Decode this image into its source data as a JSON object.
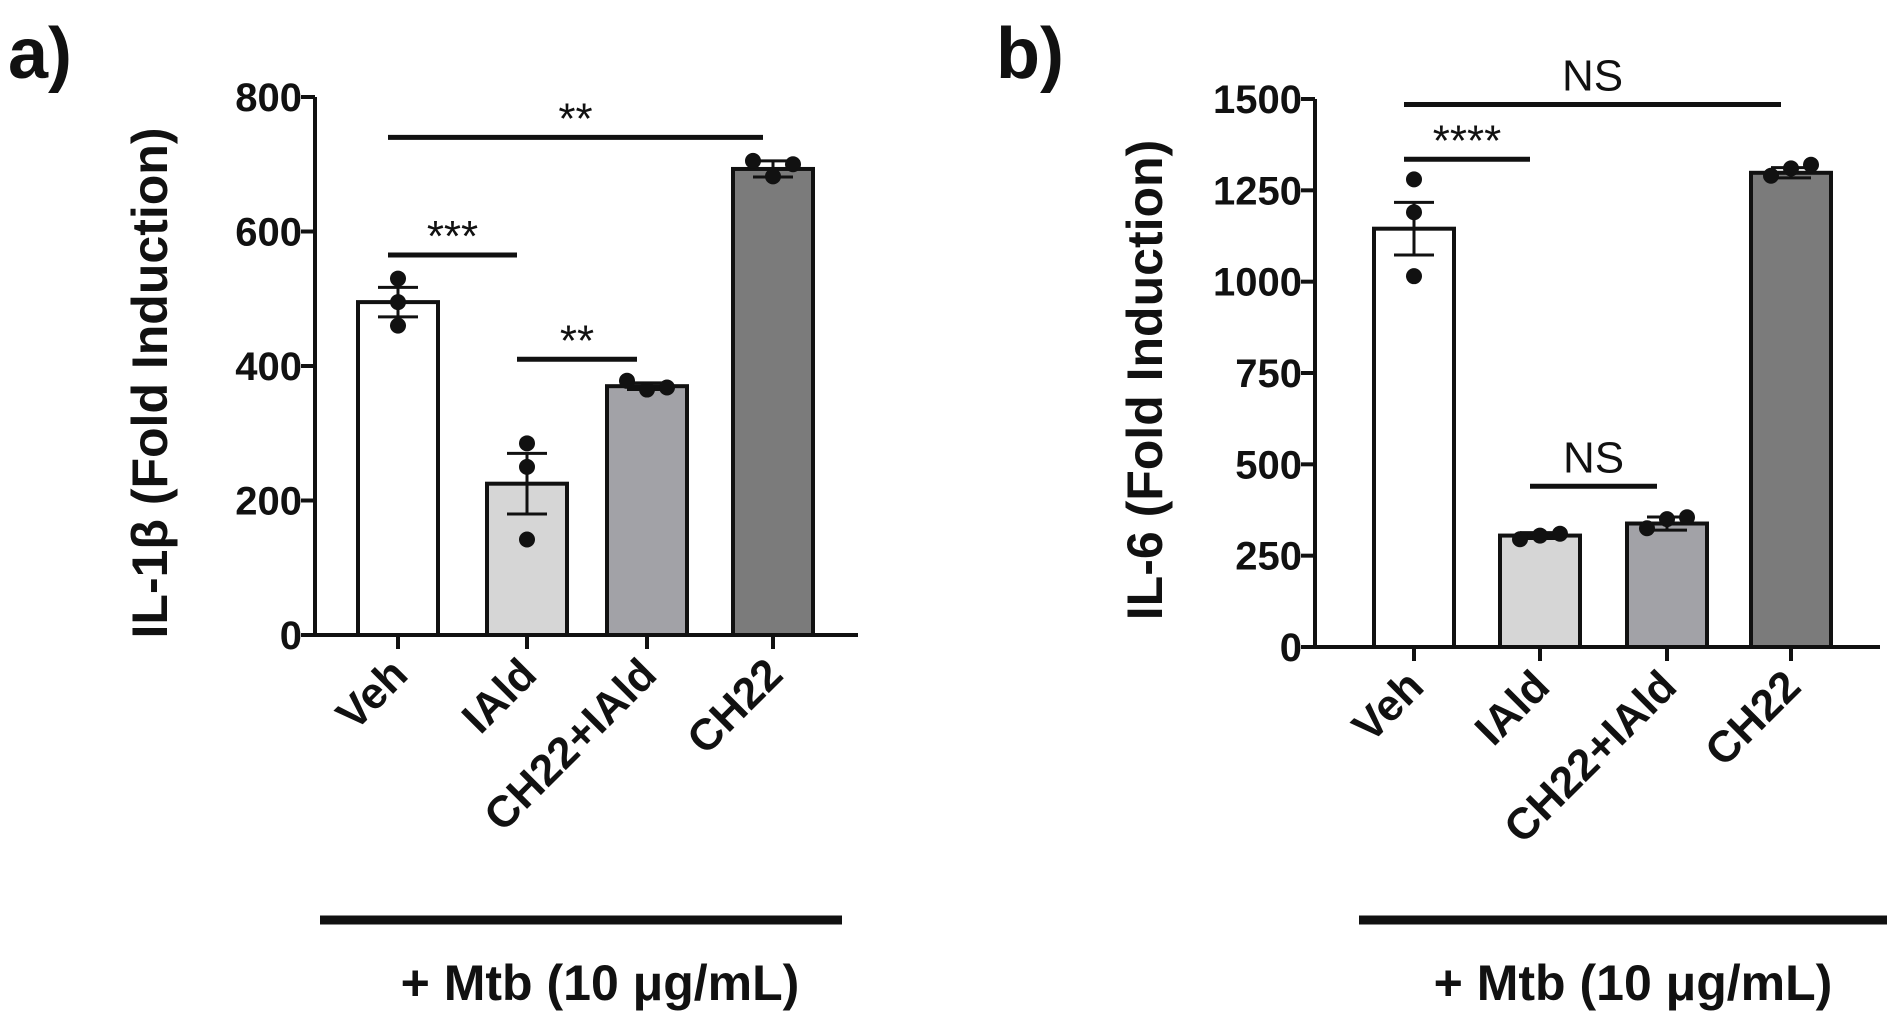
{
  "figure": {
    "colors": {
      "ink": "#111111",
      "veh": "#ffffff",
      "iald": "#d6d6d6",
      "ch22_iald": "#a2a2a7",
      "ch22": "#7b7b7b"
    }
  },
  "chart_data": [
    {
      "type": "bar",
      "panel_label": "a)",
      "title": "",
      "xlabel": "",
      "ylabel": "IL-1β (Fold Induction)",
      "ylim": [
        0,
        800
      ],
      "yticks": [
        0,
        200,
        400,
        600,
        800
      ],
      "ytick_labels": [
        "0",
        "200",
        "400",
        "600",
        "800"
      ],
      "categories": [
        "Veh",
        "IAld",
        "CH22+IAld",
        "CH22"
      ],
      "values": [
        495,
        225,
        370,
        693
      ],
      "errors": [
        22,
        45,
        5,
        12
      ],
      "points": [
        [
          530,
          495,
          460
        ],
        [
          285,
          250,
          142
        ],
        [
          378,
          365,
          368
        ],
        [
          705,
          682,
          700
        ]
      ],
      "group_label": "+ Mtb (10 μg/mL)",
      "grid": false,
      "significance": [
        {
          "from": 0,
          "to": 1,
          "label": "***",
          "y": 565
        },
        {
          "from": 1,
          "to": 2,
          "label": "**",
          "y": 410
        },
        {
          "from": 0,
          "to": 3,
          "label": "**",
          "y": 740
        }
      ]
    },
    {
      "type": "bar",
      "panel_label": "b)",
      "title": "",
      "xlabel": "",
      "ylabel": "IL-6 (Fold Induction)",
      "ylim": [
        0,
        1500
      ],
      "yticks": [
        0,
        250,
        500,
        750,
        1000,
        1250,
        1500
      ],
      "ytick_labels": [
        "0",
        "250",
        "500",
        "750",
        "1000",
        "1250",
        "1500"
      ],
      "categories": [
        "Veh",
        "IAld",
        "CH22+IAld",
        "CH22"
      ],
      "values": [
        1145,
        305,
        338,
        1298
      ],
      "errors": [
        72,
        8,
        18,
        14
      ],
      "points": [
        [
          1280,
          1190,
          1015
        ],
        [
          295,
          305,
          310
        ],
        [
          325,
          350,
          355
        ],
        [
          1290,
          1310,
          1320
        ]
      ],
      "group_label": "+ Mtb (10 μg/mL)",
      "grid": false,
      "significance": [
        {
          "from": 0,
          "to": 1,
          "label": "****",
          "y": 1335
        },
        {
          "from": 1,
          "to": 2,
          "label": "NS",
          "y": 440
        },
        {
          "from": 0,
          "to": 3,
          "label": "NS",
          "y": 1485
        }
      ]
    }
  ]
}
